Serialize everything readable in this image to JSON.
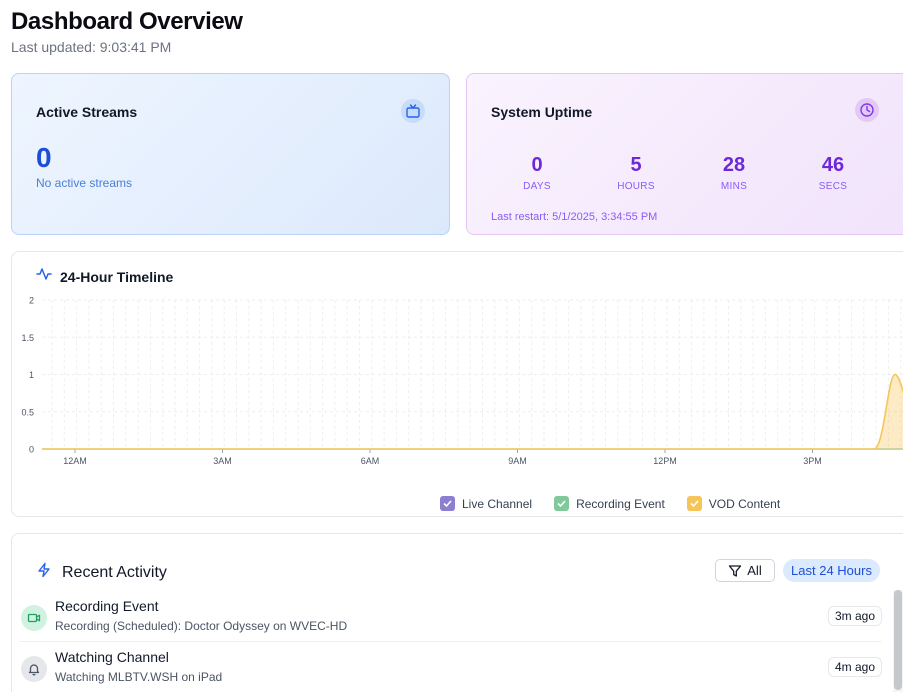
{
  "header": {
    "title": "Dashboard Overview",
    "last_updated": "Last updated: 9:03:41 PM"
  },
  "active_streams": {
    "title": "Active Streams",
    "icon": "tv-icon",
    "count": "0",
    "subtitle": "No active streams"
  },
  "uptime": {
    "title": "System Uptime",
    "icon": "clock-icon",
    "units": [
      {
        "value": "0",
        "label": "DAYS"
      },
      {
        "value": "5",
        "label": "HOURS"
      },
      {
        "value": "28",
        "label": "MINS"
      },
      {
        "value": "46",
        "label": "SECS"
      }
    ],
    "last_restart": "Last restart: 5/1/2025, 3:34:55 PM"
  },
  "timeline": {
    "title": "24-Hour Timeline",
    "icon": "activity-icon",
    "legend": [
      {
        "label": "Live Channel",
        "color": "#8b7fd1"
      },
      {
        "label": "Recording Event",
        "color": "#82c99a"
      },
      {
        "label": "VOD Content",
        "color": "#f5c55a"
      }
    ]
  },
  "chart_data": {
    "type": "area",
    "x_ticks": [
      "12AM",
      "3AM",
      "6AM",
      "9AM",
      "12PM",
      "3PM"
    ],
    "y_ticks": [
      "0",
      "0.5",
      "1",
      "1.5",
      "2"
    ],
    "ylim": [
      0,
      2
    ],
    "grid": true,
    "legend_position": "bottom",
    "series": [
      {
        "name": "Live Channel",
        "color": "#8b7fd1",
        "values": "all 0"
      },
      {
        "name": "Recording Event",
        "color": "#82c99a",
        "values": "all 0"
      },
      {
        "name": "VOD Content",
        "color": "#f5c55a",
        "values": "0 until ~5PM, peak 1 at ~5:10PM"
      }
    ]
  },
  "activity": {
    "title": "Recent Activity",
    "icon": "lightning-icon",
    "filter_label": "All",
    "range_label": "Last 24 Hours",
    "items": [
      {
        "title": "Recording Event",
        "description": "Recording (Scheduled): Doctor Odyssey on WVEC-HD",
        "time": "3m ago",
        "icon": "video-camera-icon",
        "icon_bg": "#d1f2e0",
        "icon_color": "#22a060"
      },
      {
        "title": "Watching Channel",
        "description": "Watching MLBTV.WSH on iPad",
        "time": "4m ago",
        "icon": "bell-icon",
        "icon_bg": "#e5e7eb",
        "icon_color": "#4b5563"
      }
    ]
  }
}
